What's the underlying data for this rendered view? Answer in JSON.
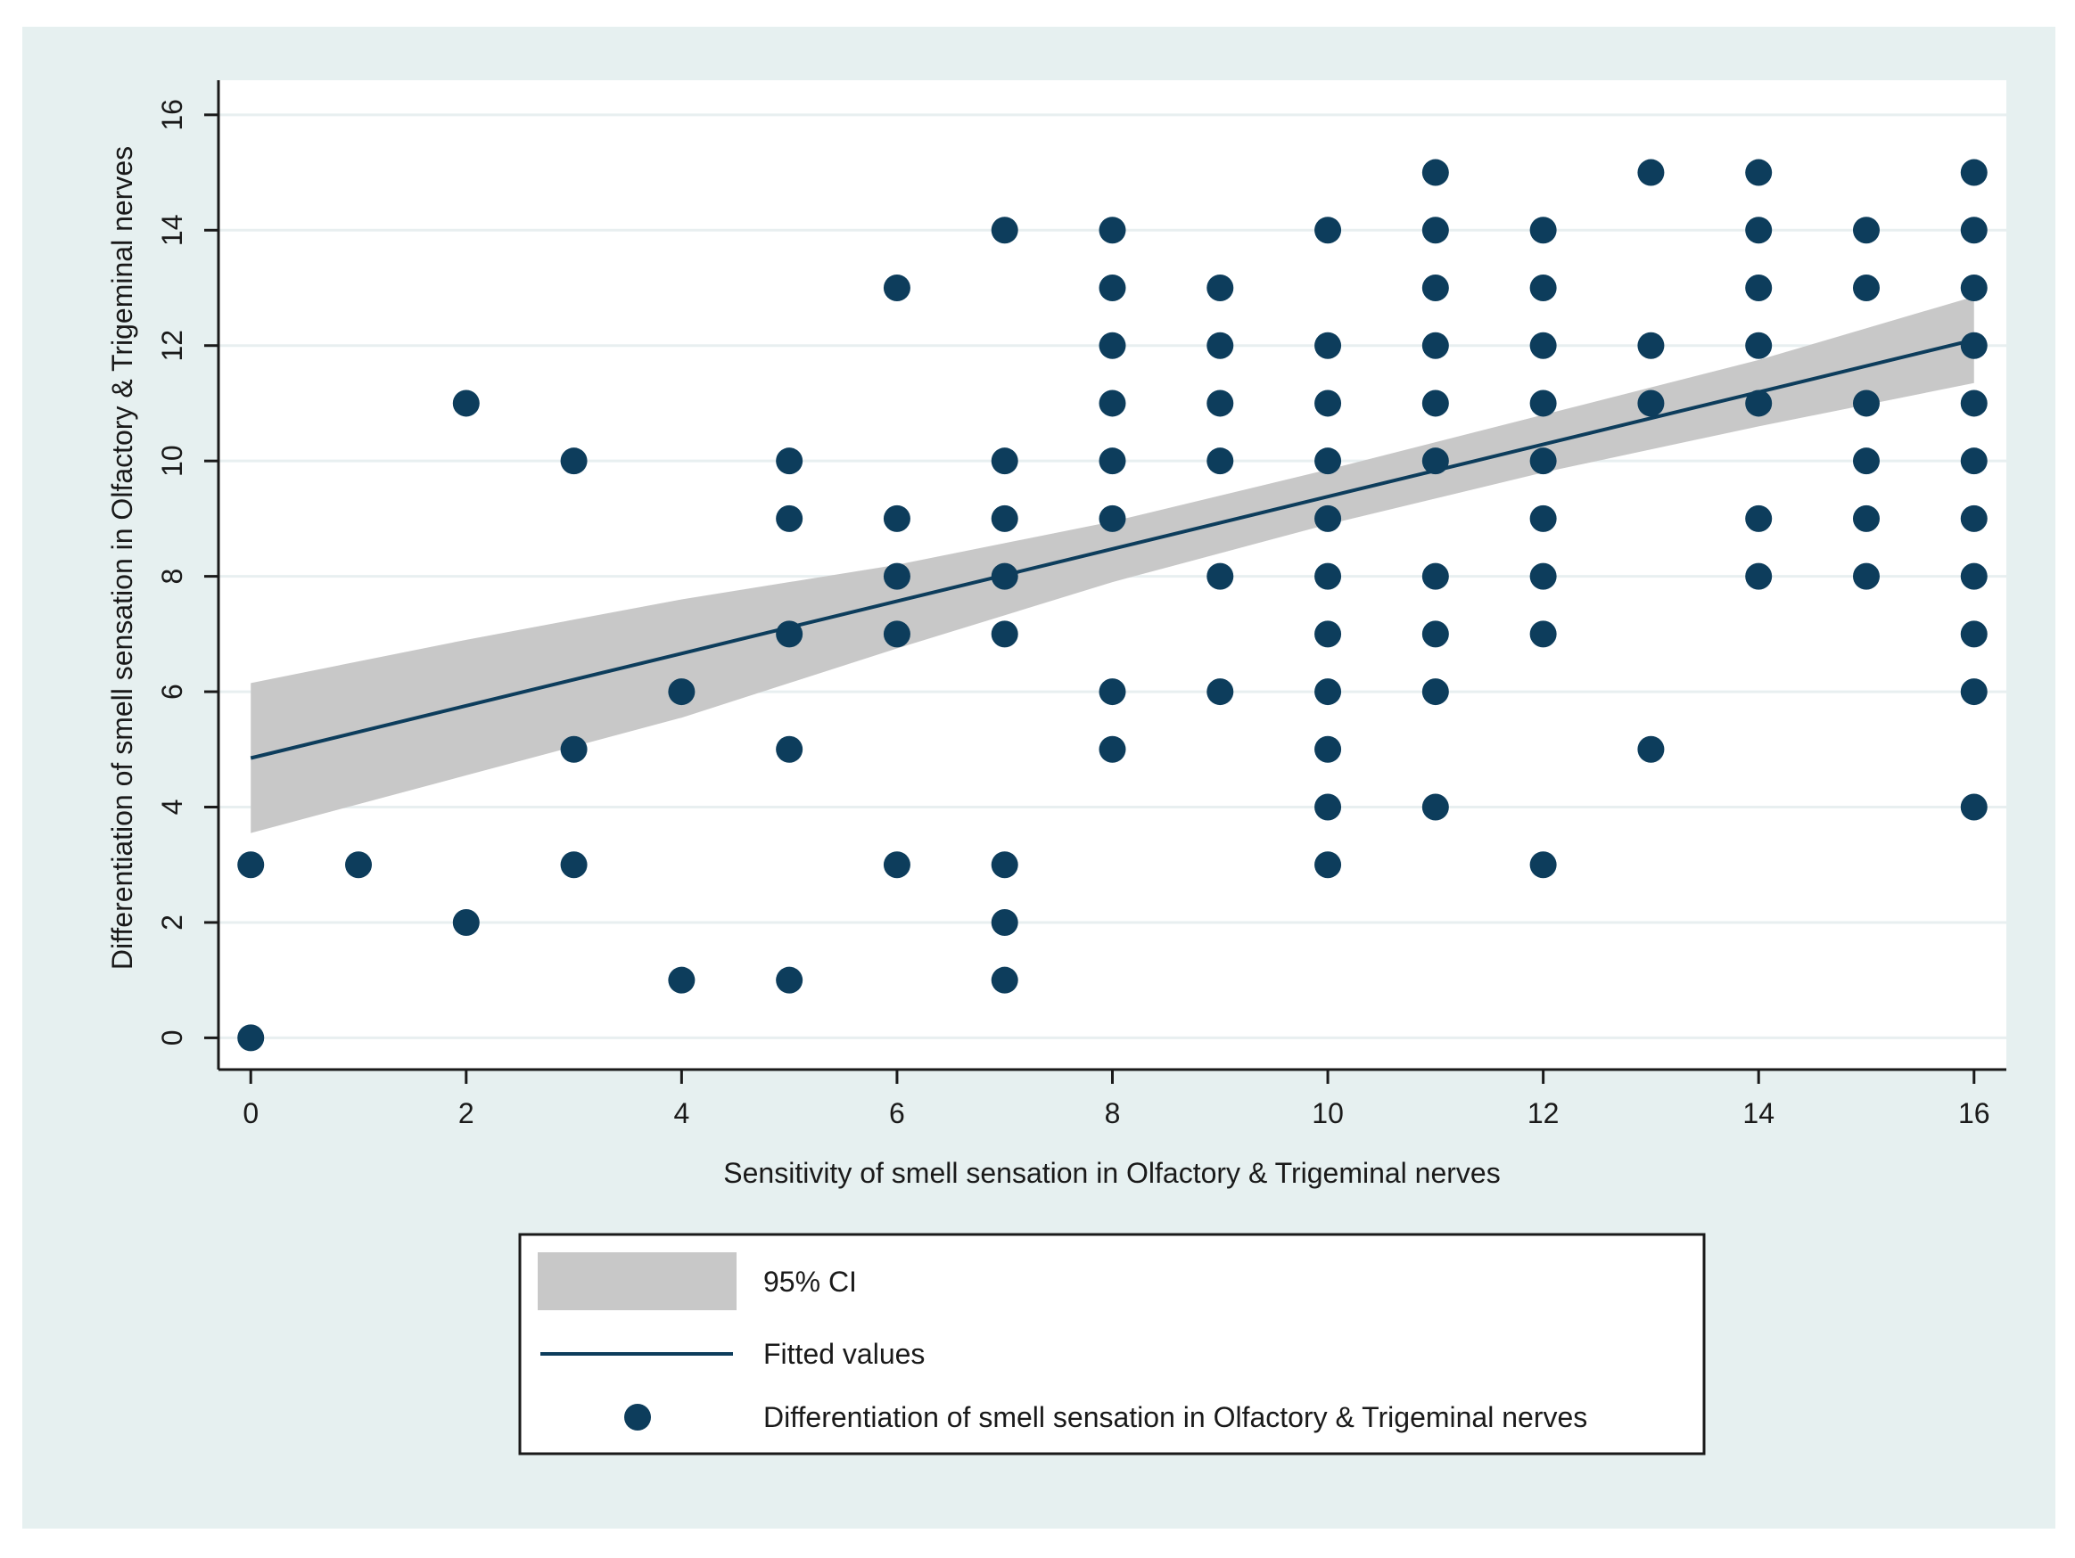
{
  "chart_data": {
    "type": "scatter",
    "xlabel": "Sensitivity of smell sensation in Olfactory & Trigeminal nerves",
    "ylabel": "Differentiation of smell sensation in Olfactory & Trigeminal nerves",
    "xlim": [
      -0.3,
      16.3
    ],
    "ylim": [
      -0.55,
      16.6
    ],
    "xticks": [
      0,
      2,
      4,
      6,
      8,
      10,
      12,
      14,
      16
    ],
    "yticks": [
      0,
      2,
      4,
      6,
      8,
      10,
      12,
      14,
      16
    ],
    "grid": true,
    "legend_position": "bottom",
    "legend": [
      {
        "label": "95% CI",
        "kind": "band"
      },
      {
        "label": "Fitted values",
        "kind": "line"
      },
      {
        "label": "Differentiation of smell sensation in Olfactory & Trigeminal nerves",
        "kind": "marker"
      }
    ],
    "series": [
      {
        "name": "Differentiation of smell sensation in Olfactory & Trigeminal nerves",
        "kind": "scatter",
        "points": [
          [
            0,
            0
          ],
          [
            0,
            3
          ],
          [
            1,
            3
          ],
          [
            2,
            2
          ],
          [
            2,
            11
          ],
          [
            3,
            3
          ],
          [
            3,
            5
          ],
          [
            3,
            10
          ],
          [
            4,
            1
          ],
          [
            4,
            6
          ],
          [
            5,
            1
          ],
          [
            5,
            5
          ],
          [
            5,
            7
          ],
          [
            5,
            9
          ],
          [
            5,
            10
          ],
          [
            6,
            3
          ],
          [
            6,
            7
          ],
          [
            6,
            8
          ],
          [
            6,
            9
          ],
          [
            6,
            13
          ],
          [
            7,
            1
          ],
          [
            7,
            2
          ],
          [
            7,
            3
          ],
          [
            7,
            7
          ],
          [
            7,
            8
          ],
          [
            7,
            9
          ],
          [
            7,
            10
          ],
          [
            7,
            14
          ],
          [
            8,
            5
          ],
          [
            8,
            6
          ],
          [
            8,
            9
          ],
          [
            8,
            10
          ],
          [
            8,
            11
          ],
          [
            8,
            12
          ],
          [
            8,
            13
          ],
          [
            8,
            14
          ],
          [
            9,
            6
          ],
          [
            9,
            8
          ],
          [
            9,
            10
          ],
          [
            9,
            11
          ],
          [
            9,
            12
          ],
          [
            9,
            13
          ],
          [
            10,
            3
          ],
          [
            10,
            4
          ],
          [
            10,
            5
          ],
          [
            10,
            6
          ],
          [
            10,
            7
          ],
          [
            10,
            8
          ],
          [
            10,
            9
          ],
          [
            10,
            10
          ],
          [
            10,
            11
          ],
          [
            10,
            12
          ],
          [
            10,
            14
          ],
          [
            11,
            4
          ],
          [
            11,
            6
          ],
          [
            11,
            7
          ],
          [
            11,
            8
          ],
          [
            11,
            10
          ],
          [
            11,
            11
          ],
          [
            11,
            12
          ],
          [
            11,
            13
          ],
          [
            11,
            14
          ],
          [
            11,
            15
          ],
          [
            12,
            3
          ],
          [
            12,
            7
          ],
          [
            12,
            8
          ],
          [
            12,
            9
          ],
          [
            12,
            10
          ],
          [
            12,
            11
          ],
          [
            12,
            12
          ],
          [
            12,
            13
          ],
          [
            12,
            14
          ],
          [
            13,
            5
          ],
          [
            13,
            11
          ],
          [
            13,
            12
          ],
          [
            13,
            15
          ],
          [
            14,
            8
          ],
          [
            14,
            9
          ],
          [
            14,
            11
          ],
          [
            14,
            12
          ],
          [
            14,
            13
          ],
          [
            14,
            14
          ],
          [
            14,
            15
          ],
          [
            15,
            8
          ],
          [
            15,
            9
          ],
          [
            15,
            10
          ],
          [
            15,
            11
          ],
          [
            15,
            13
          ],
          [
            15,
            14
          ],
          [
            16,
            4
          ],
          [
            16,
            6
          ],
          [
            16,
            7
          ],
          [
            16,
            8
          ],
          [
            16,
            9
          ],
          [
            16,
            10
          ],
          [
            16,
            11
          ],
          [
            16,
            12
          ],
          [
            16,
            13
          ],
          [
            16,
            14
          ],
          [
            16,
            15
          ]
        ]
      },
      {
        "name": "Fitted values",
        "kind": "line",
        "x": [
          0,
          16
        ],
        "y": [
          4.85,
          12.1
        ]
      },
      {
        "name": "95% CI",
        "kind": "band",
        "x": [
          0,
          2,
          4,
          6,
          8,
          10,
          12,
          14,
          16
        ],
        "lower": [
          3.55,
          4.55,
          5.55,
          6.75,
          7.9,
          8.9,
          9.8,
          10.6,
          11.35
        ],
        "upper": [
          6.15,
          6.9,
          7.6,
          8.2,
          8.95,
          9.85,
          10.8,
          11.75,
          12.85
        ]
      }
    ],
    "colors": {
      "frame_background": "#e6f0f0",
      "plot_background": "#ffffff",
      "marker": "#0d3d5c",
      "line": "#0d3d5c",
      "band": "#c8c8c8",
      "grid": "#e8eff0",
      "axis": "#1a1a1a"
    }
  }
}
